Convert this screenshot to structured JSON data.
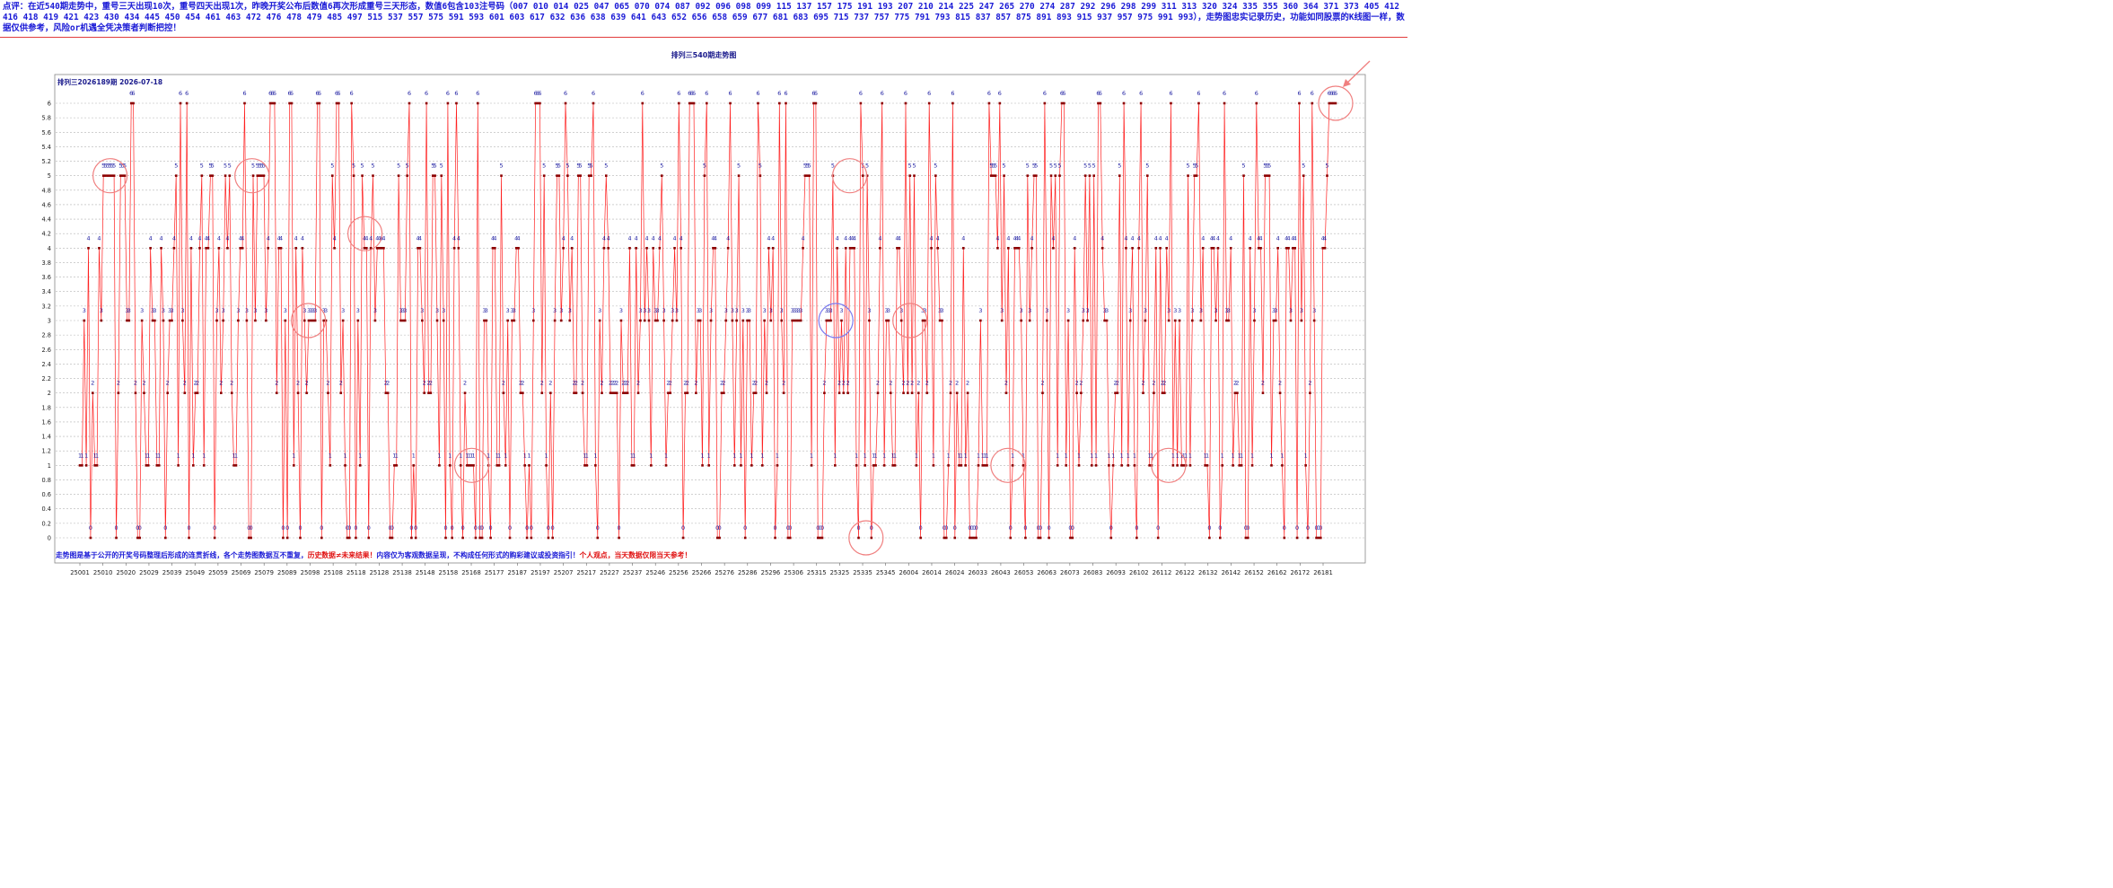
{
  "commentary": "点评：在近540期走势中，重号三天出现10次，重号四天出现1次，昨晚开奖公布后数值6再次形成重号三天形态，数值6包含103注号码（007 010 014 025 047 065 070 074 087 092 096 098 099 115 137 157 175 191 193 207 210 214 225 247 265 270 274 287 292 296 298 299 311 313 320 324 335 355 360 364 371 373 405 412 416 418 419 421 423 430 434 445 450 454 461 463 472 476 478 479 485 497 515 537 557 575 591 593 601 603 617 632 636 638 639 641 643 652 656 658 659 677 681 683 695 715 737 757 775 791 793 815 837 857 875 891 893 915 937 957 975 991 993），走势图忠实记录历史，功能如同股票的K线图一样，数据仅供参考，风险or机遇全凭决策者判断把控！",
  "chart_title": "排列三540期走势图",
  "chart_data": {
    "type": "line",
    "inner_title": "排列三2026189期 2026-07-18",
    "ylim": [
      0,
      6
    ],
    "y_ticks": [
      "0",
      "0.2",
      "0.4",
      "0.6",
      "0.8",
      "1",
      "1.2",
      "1.4",
      "1.6",
      "1.8",
      "2",
      "2.2",
      "2.4",
      "2.6",
      "2.8",
      "3",
      "3.2",
      "3.4",
      "3.6",
      "3.8",
      "4",
      "4.2",
      "4.4",
      "4.6",
      "4.8",
      "5",
      "5.2",
      "5.4",
      "5.6",
      "5.8",
      "6"
    ],
    "x_ticks": [
      "25001",
      "25010",
      "25020",
      "25029",
      "25039",
      "25049",
      "25059",
      "25069",
      "25079",
      "25089",
      "25098",
      "25108",
      "25118",
      "25128",
      "25138",
      "25148",
      "25158",
      "25168",
      "25177",
      "25187",
      "25197",
      "25207",
      "25217",
      "25227",
      "25237",
      "25246",
      "25256",
      "25266",
      "25276",
      "25286",
      "25296",
      "25306",
      "25315",
      "25325",
      "25335",
      "25345",
      "26004",
      "26014",
      "26024",
      "26033",
      "26043",
      "26053",
      "26063",
      "26073",
      "26083",
      "26093",
      "26102",
      "26112",
      "26122",
      "26132",
      "26142",
      "26152",
      "26162",
      "26172",
      "26181"
    ],
    "grid": true,
    "line_color": "#ff2020",
    "point_color": "#8b0000",
    "label_color": "#1a1aa0",
    "values": [
      1,
      1,
      3,
      1,
      4,
      0,
      2,
      1,
      1,
      4,
      3,
      5,
      5,
      5,
      5,
      5,
      5,
      0,
      2,
      5,
      5,
      5,
      3,
      3,
      6,
      6,
      2,
      0,
      0,
      3,
      2,
      1,
      1,
      4,
      3,
      3,
      1,
      1,
      4,
      3,
      0,
      2,
      3,
      3,
      4,
      5,
      1,
      6,
      3,
      2,
      6,
      0,
      4,
      1,
      2,
      2,
      4,
      5,
      1,
      4,
      4,
      5,
      5,
      0,
      3,
      4,
      2,
      3,
      5,
      4,
      5,
      2,
      1,
      1,
      3,
      4,
      4,
      6,
      3,
      0,
      0,
      5,
      3,
      5,
      5,
      5,
      5,
      3,
      4,
      6,
      6,
      6,
      2,
      4,
      4,
      0,
      3,
      0,
      6,
      6,
      1,
      4,
      2,
      0,
      4,
      3,
      2,
      3,
      3,
      3,
      3,
      6,
      6,
      0,
      3,
      3,
      2,
      1,
      5,
      4,
      6,
      6,
      2,
      3,
      1,
      0,
      0,
      6,
      5,
      0,
      3,
      1,
      5,
      4,
      4,
      0,
      4,
      5,
      3,
      4,
      4,
      4,
      4,
      2,
      2,
      0,
      0,
      1,
      1,
      5,
      3,
      3,
      3,
      5,
      6,
      0,
      1,
      0,
      4,
      4,
      3,
      2,
      6,
      2,
      2,
      5,
      5,
      3,
      1,
      5,
      3,
      0,
      6,
      1,
      0,
      4,
      6,
      4,
      1,
      0,
      2,
      1,
      1,
      1,
      1,
      0,
      6,
      0,
      0,
      3,
      3,
      1,
      0,
      4,
      4,
      1,
      1,
      5,
      2,
      1,
      3,
      0,
      3,
      3,
      4,
      4,
      2,
      2,
      1,
      0,
      1,
      0,
      3,
      6,
      6,
      6,
      2,
      5,
      1,
      0,
      2,
      0,
      3,
      5,
      5,
      3,
      4,
      6,
      5,
      3,
      4,
      2,
      2,
      5,
      5,
      2,
      1,
      1,
      5,
      5,
      6,
      1,
      0,
      3,
      2,
      4,
      5,
      4,
      2,
      2,
      2,
      2,
      0,
      3,
      2,
      2,
      2,
      4,
      1,
      1,
      4,
      2,
      3,
      6,
      3,
      4,
      3,
      1,
      4,
      3,
      3,
      4,
      5,
      3,
      1,
      2,
      2,
      3,
      4,
      3,
      6,
      4,
      0,
      2,
      2,
      6,
      6,
      6,
      2,
      3,
      3,
      1,
      5,
      6,
      1,
      3,
      4,
      4,
      0,
      0,
      2,
      2,
      3,
      4,
      6,
      3,
      1,
      3,
      5,
      1,
      3,
      0,
      3,
      3,
      1,
      2,
      2,
      6,
      5,
      1,
      3,
      2,
      4,
      3,
      4,
      0,
      1,
      6,
      3,
      2,
      6,
      0,
      0,
      3,
      3,
      3,
      3,
      3,
      4,
      5,
      5,
      5,
      1,
      6,
      6,
      0,
      0,
      0,
      2,
      3,
      3,
      3,
      5,
      1,
      4,
      2,
      3,
      2,
      4,
      2,
      4,
      4,
      4,
      1,
      0,
      6,
      5,
      1,
      5,
      3,
      0,
      1,
      1,
      2,
      4,
      6,
      1,
      3,
      3,
      2,
      1,
      1,
      4,
      4,
      3,
      2,
      6,
      2,
      5,
      2,
      5,
      1,
      2,
      0,
      3,
      3,
      2,
      6,
      4,
      1,
      5,
      4,
      3,
      3,
      0,
      0,
      1,
      2,
      6,
      0,
      2,
      1,
      1,
      4,
      1,
      2,
      0,
      0,
      0,
      0,
      1,
      3,
      1,
      1,
      1,
      6,
      5,
      5,
      5,
      4,
      6,
      3,
      5,
      2,
      4,
      0,
      1,
      4,
      4,
      4,
      3,
      1,
      0,
      5,
      3,
      4,
      5,
      5,
      0,
      0,
      2,
      6,
      3,
      0,
      5,
      4,
      5,
      1,
      5,
      6,
      6,
      1,
      3,
      0,
      0,
      4,
      2,
      1,
      2,
      3,
      5,
      3,
      5,
      1,
      5,
      1,
      6,
      6,
      4,
      3,
      3,
      1,
      0,
      1,
      2,
      2,
      5,
      1,
      6,
      4,
      1,
      3,
      4,
      1,
      0,
      4,
      6,
      2,
      3,
      5,
      1,
      1,
      2,
      4,
      0,
      4,
      2,
      2,
      4,
      3,
      6,
      1,
      3,
      1,
      3,
      1,
      1,
      1,
      5,
      1,
      3,
      5,
      5,
      6,
      3,
      4,
      1,
      1,
      0,
      4,
      4,
      3,
      4,
      0,
      1,
      6,
      3,
      3,
      4,
      1,
      2,
      2,
      1,
      1,
      5,
      0,
      0,
      4,
      1,
      3,
      6,
      4,
      4,
      2,
      5,
      5,
      5,
      1,
      3,
      3,
      4,
      2,
      1,
      0,
      4,
      4,
      3,
      4,
      4,
      0,
      6,
      3,
      5,
      1,
      0,
      2,
      6,
      3,
      0,
      0,
      0,
      4,
      4,
      5,
      6,
      6,
      6,
      6
    ]
  },
  "footer": {
    "part1": "走势图是基于公开的开奖号码整理后形成的连贯折线，各个走势图数据互不重复，",
    "part2": "历史数据≠未来结果！",
    "part3": "内容仅为客观数据呈现，不构成任何形式的购彩建议或投资指引！",
    "part4": "个人观点，当天数据仅限当天参考！"
  },
  "colors": {
    "commentary": "#1a1ad6",
    "highlight_circle": "#f08080",
    "latest_circle": "#7b7bf0",
    "arrow": "#f08080"
  }
}
